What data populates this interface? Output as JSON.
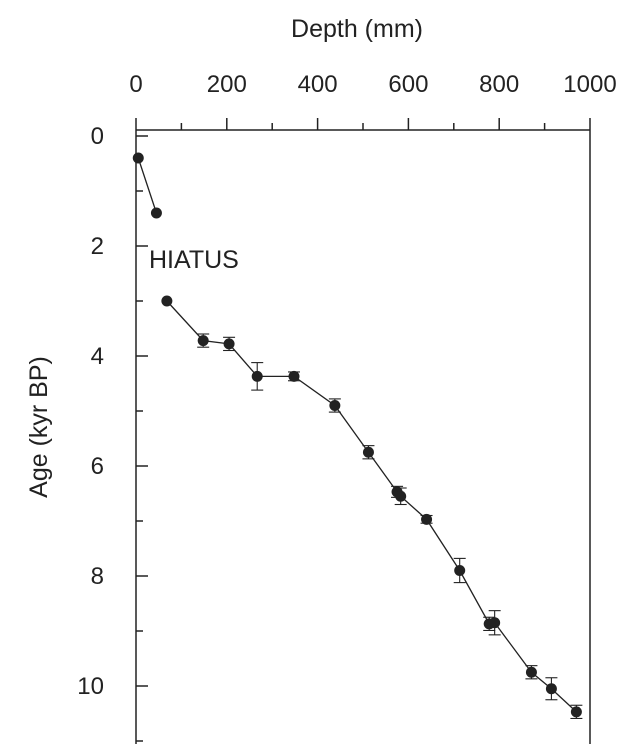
{
  "chart_data": {
    "type": "scatter",
    "xlabel": "Depth (mm)",
    "ylabel": "Age (kyr BP)",
    "x_axis_position": "top",
    "y_axis_inverted": true,
    "xlim": [
      0,
      1000
    ],
    "ylim": [
      0,
      11
    ],
    "x_ticks": [
      0,
      200,
      400,
      600,
      800,
      1000
    ],
    "y_ticks": [
      0,
      2,
      4,
      6,
      8,
      10
    ],
    "annotations": [
      {
        "text": "HIATUS",
        "x": 30,
        "y": 2.2
      }
    ],
    "segments": [
      {
        "points": [
          {
            "x": 5,
            "y": 0.4,
            "err": 0
          },
          {
            "x": 45,
            "y": 1.4,
            "err": 0
          }
        ]
      },
      {
        "points": [
          {
            "x": 68,
            "y": 3.0,
            "err": 0
          },
          {
            "x": 148,
            "y": 3.72,
            "err": 0.12
          },
          {
            "x": 205,
            "y": 3.78,
            "err": 0.12
          },
          {
            "x": 267,
            "y": 4.37,
            "err": 0.25
          },
          {
            "x": 348,
            "y": 4.37,
            "err": 0.08
          },
          {
            "x": 438,
            "y": 4.9,
            "err": 0.12
          },
          {
            "x": 512,
            "y": 5.75,
            "err": 0.12
          },
          {
            "x": 575,
            "y": 6.47,
            "err": 0.1
          },
          {
            "x": 583,
            "y": 6.55,
            "err": 0.15
          },
          {
            "x": 640,
            "y": 6.97,
            "err": 0.07
          },
          {
            "x": 713,
            "y": 7.9,
            "err": 0.22
          },
          {
            "x": 778,
            "y": 8.87,
            "err": 0.12
          },
          {
            "x": 790,
            "y": 8.85,
            "err": 0.22
          },
          {
            "x": 871,
            "y": 9.75,
            "err": 0.12
          },
          {
            "x": 915,
            "y": 10.05,
            "err": 0.2
          },
          {
            "x": 970,
            "y": 10.47,
            "err": 0.12
          }
        ]
      }
    ],
    "colors": {
      "line": "#222222",
      "marker": "#222222",
      "axis": "#222222"
    }
  }
}
